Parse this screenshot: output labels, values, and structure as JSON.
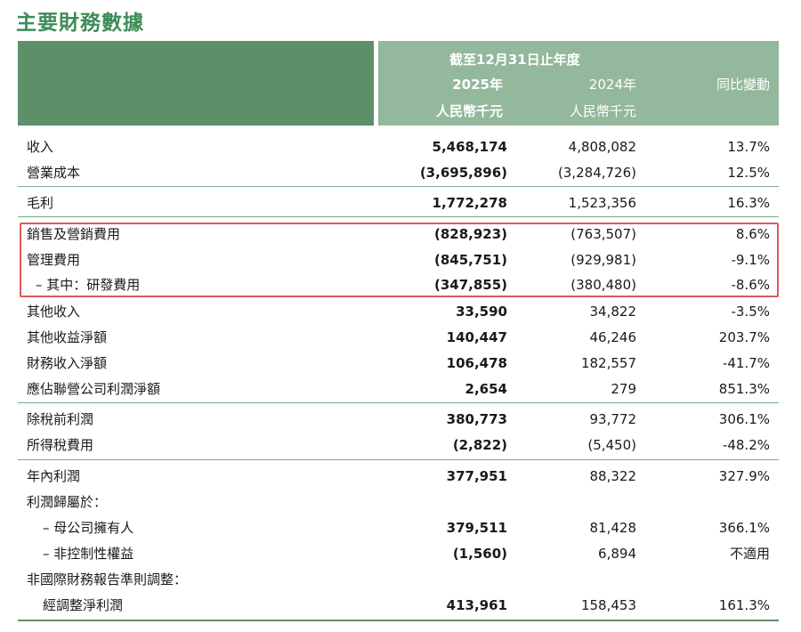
{
  "title": "主要財務數據",
  "header": {
    "period": "截至12月31日止年度",
    "col_2025": "2025年",
    "col_2024": "2024年",
    "col_change": "同比變動",
    "unit_2025": "人民幣千元",
    "unit_2024": "人民幣千元"
  },
  "rows": [
    {
      "label": "收入",
      "cur": "5,468,174",
      "prev": "4,808,082",
      "chg": "13.7%"
    },
    {
      "label": "營業成本",
      "cur": "(3,695,896)",
      "prev": "(3,284,726)",
      "chg": "12.5%"
    },
    {
      "label": "毛利",
      "cur": "1,772,278",
      "prev": "1,523,356",
      "chg": "16.3%"
    },
    {
      "label": "銷售及營銷費用",
      "cur": "(828,923)",
      "prev": "(763,507)",
      "chg": "8.6%"
    },
    {
      "label": "管理費用",
      "cur": "(845,751)",
      "prev": "(929,981)",
      "chg": "-9.1%"
    },
    {
      "label": "– 其中：研發費用",
      "cur": "(347,855)",
      "prev": "(380,480)",
      "chg": "-8.6%"
    },
    {
      "label": "其他收入",
      "cur": "33,590",
      "prev": "34,822",
      "chg": "-3.5%"
    },
    {
      "label": "其他收益淨額",
      "cur": "140,447",
      "prev": "46,246",
      "chg": "203.7%"
    },
    {
      "label": "財務收入淨額",
      "cur": "106,478",
      "prev": "182,557",
      "chg": "-41.7%"
    },
    {
      "label": "應佔聯營公司利潤淨額",
      "cur": "2,654",
      "prev": "279",
      "chg": "851.3%"
    },
    {
      "label": "除稅前利潤",
      "cur": "380,773",
      "prev": "93,772",
      "chg": "306.1%"
    },
    {
      "label": "所得稅費用",
      "cur": "(2,822)",
      "prev": "(5,450)",
      "chg": "-48.2%"
    },
    {
      "label": "年內利潤",
      "cur": "377,951",
      "prev": "88,322",
      "chg": "327.9%"
    },
    {
      "label": "利潤歸屬於：",
      "cur": "",
      "prev": "",
      "chg": ""
    },
    {
      "label": "– 母公司擁有人",
      "cur": "379,511",
      "prev": "81,428",
      "chg": "366.1%"
    },
    {
      "label": "– 非控制性權益",
      "cur": "(1,560)",
      "prev": "6,894",
      "chg": "不適用"
    },
    {
      "label": "非國際財務報告準則調整：",
      "cur": "",
      "prev": "",
      "chg": ""
    },
    {
      "label": "經調整淨利潤",
      "cur": "413,961",
      "prev": "158,453",
      "chg": "161.3%"
    }
  ]
}
